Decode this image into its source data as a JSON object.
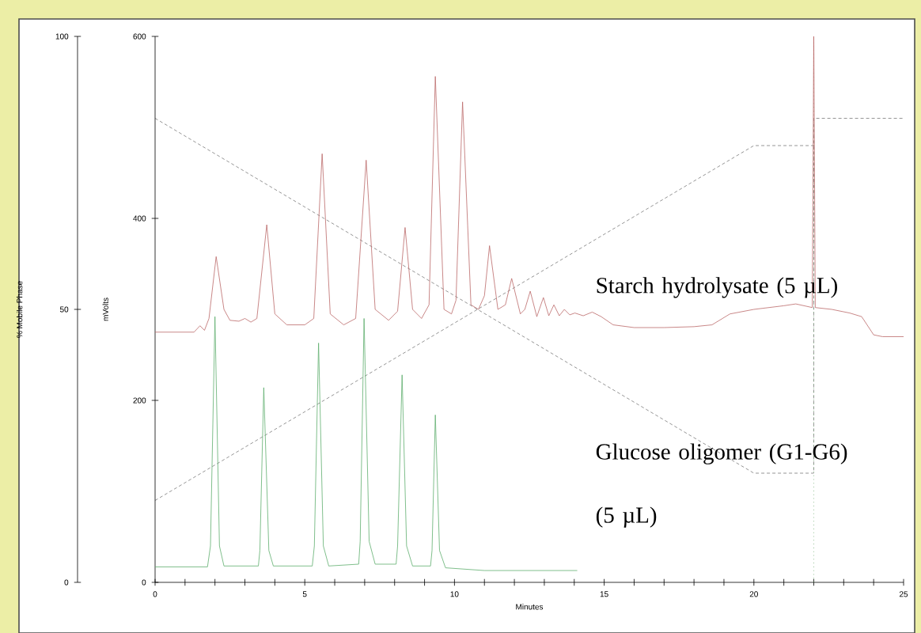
{
  "chart_data": {
    "type": "line",
    "xlabel": "Minutes",
    "ylabel": "mVolts",
    "y2label": "% Mobile Phase",
    "xlim": [
      0,
      25
    ],
    "ylim": [
      0,
      600
    ],
    "y2lim": [
      0,
      100
    ],
    "xticks": [
      0,
      {
        "value": 1,
        "label": null
      },
      {
        "value": 2,
        "label": null
      },
      {
        "value": 3,
        "label": null
      },
      {
        "value": 4,
        "label": null
      },
      5,
      {
        "value": 6,
        "label": null
      },
      {
        "value": 7,
        "label": null
      },
      {
        "value": 8,
        "label": null
      },
      {
        "value": 9,
        "label": null
      },
      10,
      {
        "value": 11,
        "label": null
      },
      {
        "value": 12,
        "label": null
      },
      {
        "value": 13,
        "label": null
      },
      {
        "value": 14,
        "label": null
      },
      15,
      {
        "value": 16,
        "label": null
      },
      {
        "value": 17,
        "label": null
      },
      {
        "value": 18,
        "label": null
      },
      {
        "value": 19,
        "label": null
      },
      20,
      {
        "value": 21,
        "label": null
      },
      {
        "value": 22,
        "label": null
      },
      {
        "value": 23,
        "label": null
      },
      {
        "value": 24,
        "label": null
      },
      25
    ],
    "yticks": [
      0,
      200,
      400,
      600
    ],
    "y2ticks": [
      0,
      50,
      100
    ],
    "marker": "none",
    "line_style": "solid",
    "grid": false,
    "legend": false,
    "series": [
      {
        "name": "Starch hydrolysate (5 µL)",
        "color": "#bb6a6a",
        "x": [
          0,
          1.3,
          1.5,
          1.65,
          1.8,
          2.04,
          2.3,
          2.5,
          2.8,
          3.0,
          3.2,
          3.4,
          3.73,
          4.0,
          4.4,
          5.0,
          5.3,
          5.58,
          5.85,
          6.3,
          6.7,
          7.05,
          7.35,
          7.8,
          8.1,
          8.35,
          8.6,
          8.9,
          9.15,
          9.36,
          9.65,
          9.9,
          10.05,
          10.27,
          10.55,
          10.8,
          11.0,
          11.17,
          11.45,
          11.7,
          11.91,
          12.2,
          12.35,
          12.53,
          12.75,
          12.97,
          13.15,
          13.32,
          13.5,
          13.67,
          13.85,
          14.02,
          14.3,
          14.6,
          14.9,
          15.3,
          16,
          17,
          18,
          18.6,
          19.2,
          20,
          21,
          21.4,
          21.95,
          22.0,
          22.05,
          22.6,
          23.2,
          23.6,
          24.0,
          24.3,
          25
        ],
        "values": [
          275,
          275,
          282,
          277,
          290,
          358,
          300,
          288,
          287,
          290,
          286,
          290,
          393,
          295,
          283,
          283,
          290,
          471,
          295,
          283,
          290,
          464,
          300,
          288,
          298,
          390,
          300,
          290,
          305,
          556,
          300,
          295,
          310,
          528,
          305,
          300,
          315,
          370,
          300,
          305,
          334,
          295,
          300,
          320,
          292,
          313,
          293,
          305,
          293,
          300,
          294,
          296,
          293,
          297,
          292,
          283,
          280,
          280,
          281,
          283,
          295,
          300,
          304,
          306,
          302,
          600,
          302,
          300,
          296,
          292,
          272,
          270,
          270
        ]
      },
      {
        "name": "Glucose oligomer (G1-G6) (5 µL)",
        "color": "#5fae6e",
        "x": [
          0,
          1.75,
          1.85,
          2.0,
          2.15,
          2.3,
          3.45,
          3.5,
          3.63,
          3.8,
          3.95,
          5.25,
          5.32,
          5.46,
          5.62,
          5.8,
          6.8,
          6.85,
          6.98,
          7.15,
          7.35,
          8.05,
          8.1,
          8.25,
          8.4,
          8.6,
          9.2,
          9.25,
          9.36,
          9.5,
          9.7,
          11,
          14.1
        ],
        "values": [
          17,
          17,
          40,
          292,
          40,
          18,
          18,
          35,
          214,
          35,
          18,
          18,
          40,
          263,
          40,
          18,
          20,
          45,
          290,
          45,
          20,
          20,
          40,
          228,
          40,
          18,
          18,
          35,
          184,
          35,
          16,
          13,
          13
        ]
      },
      {
        "color": "#7a7a7a",
        "axis": "y2",
        "line_style": "dashed",
        "x": [
          0,
          20,
          22,
          22,
          25
        ],
        "values": [
          85,
          20,
          20,
          85,
          85
        ]
      },
      {
        "color": "#7a7a7a",
        "axis": "y2",
        "line_style": "dashed",
        "x": [
          0,
          20,
          22
        ],
        "values": [
          15,
          80,
          80
        ]
      }
    ],
    "ref_lines": [
      {
        "axis": "x",
        "value": 22,
        "color": "#5aa05a",
        "line_style": "dotted"
      }
    ]
  }
}
